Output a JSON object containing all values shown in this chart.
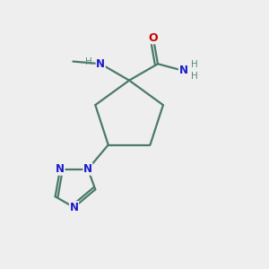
{
  "background_color": "#eeeeee",
  "bond_color": "#4a7a6a",
  "nitrogen_color": "#1a1acc",
  "oxygen_color": "#cc0000",
  "gray_color": "#5a8a7a",
  "figsize": [
    3.0,
    3.0
  ],
  "dpi": 100,
  "xlim": [
    0,
    10
  ],
  "ylim": [
    0,
    10
  ]
}
